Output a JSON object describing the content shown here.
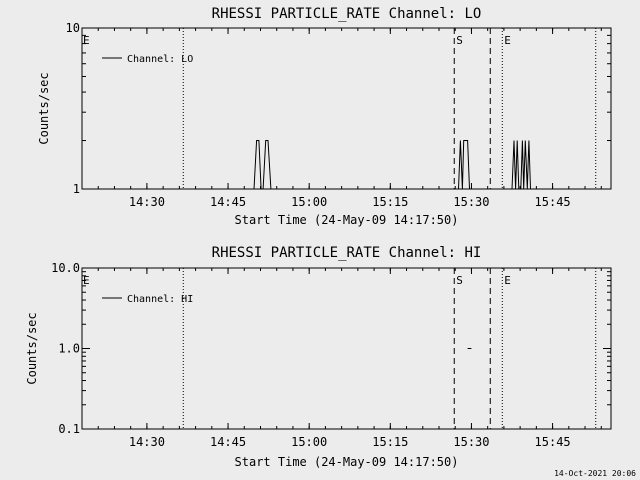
{
  "footer": {
    "timestamp": "14-Oct-2021 20:06"
  },
  "chart_data": [
    {
      "type": "line",
      "title": "RHESSI PARTICLE_RATE Channel: LO",
      "xlabel": "Start Time (24-May-09 14:17:50)",
      "ylabel": "Counts/sec",
      "yscale": "log",
      "ylim": [
        1,
        10
      ],
      "xlim_minutes": [
        14.3,
        15.93
      ],
      "xticks": [
        {
          "t": 14.5,
          "label": "14:30"
        },
        {
          "t": 14.75,
          "label": "14:45"
        },
        {
          "t": 15.0,
          "label": "15:00"
        },
        {
          "t": 15.25,
          "label": "15:15"
        },
        {
          "t": 15.5,
          "label": "15:30"
        },
        {
          "t": 15.75,
          "label": "15:45"
        }
      ],
      "yticks": [
        {
          "v": 1,
          "label": "1"
        },
        {
          "v": 10,
          "label": "10"
        }
      ],
      "legend": {
        "label": "Channel: LO",
        "position": "top-left"
      },
      "vlines": [
        {
          "t": 14.612,
          "style": "dotted"
        },
        {
          "t": 15.447,
          "style": "dashed",
          "label": "S"
        },
        {
          "t": 15.558,
          "style": "dashed"
        },
        {
          "t": 15.595,
          "style": "dotted",
          "label": "E"
        },
        {
          "t": 15.883,
          "style": "dotted"
        }
      ],
      "left_marker": "E",
      "series": [
        {
          "values_t": [
            14.83,
            14.838,
            14.845,
            14.852,
            14.858,
            14.866,
            14.873,
            14.882
          ],
          "values_y": [
            1,
            2,
            2,
            1,
            1,
            2,
            2,
            1
          ]
        },
        {
          "values_t": [
            15.46,
            15.466,
            15.472,
            15.476,
            15.48,
            15.488,
            15.494
          ],
          "values_y": [
            1,
            2,
            1,
            2,
            2,
            2,
            1
          ]
        },
        {
          "values_t": [
            15.625,
            15.631,
            15.636,
            15.641,
            15.646,
            15.652,
            15.657,
            15.661,
            15.666,
            15.672,
            15.677,
            15.682
          ],
          "values_y": [
            1,
            2,
            1,
            2,
            1,
            1,
            2,
            1,
            2,
            1,
            2,
            1
          ]
        }
      ]
    },
    {
      "type": "line",
      "title": "RHESSI PARTICLE_RATE Channel: HI",
      "xlabel": "Start Time (24-May-09 14:17:50)",
      "ylabel": "Counts/sec",
      "yscale": "log",
      "ylim": [
        0.1,
        10
      ],
      "xlim_minutes": [
        14.3,
        15.93
      ],
      "xticks": [
        {
          "t": 14.5,
          "label": "14:30"
        },
        {
          "t": 14.75,
          "label": "14:45"
        },
        {
          "t": 15.0,
          "label": "15:00"
        },
        {
          "t": 15.25,
          "label": "15:15"
        },
        {
          "t": 15.5,
          "label": "15:30"
        },
        {
          "t": 15.75,
          "label": "15:45"
        }
      ],
      "yticks": [
        {
          "v": 0.1,
          "label": "0.1"
        },
        {
          "v": 1,
          "label": "1.0"
        },
        {
          "v": 10,
          "label": "10.0"
        }
      ],
      "legend": {
        "label": "Channel: HI",
        "position": "top-left"
      },
      "vlines": [
        {
          "t": 14.612,
          "style": "dotted"
        },
        {
          "t": 15.447,
          "style": "dashed",
          "label": "S"
        },
        {
          "t": 15.558,
          "style": "dashed"
        },
        {
          "t": 15.595,
          "style": "dotted",
          "label": "E"
        },
        {
          "t": 15.883,
          "style": "dotted"
        }
      ],
      "left_marker": "E",
      "series": [
        {
          "values_t": [
            15.488,
            15.5
          ],
          "values_y": [
            1,
            1
          ]
        }
      ]
    }
  ]
}
